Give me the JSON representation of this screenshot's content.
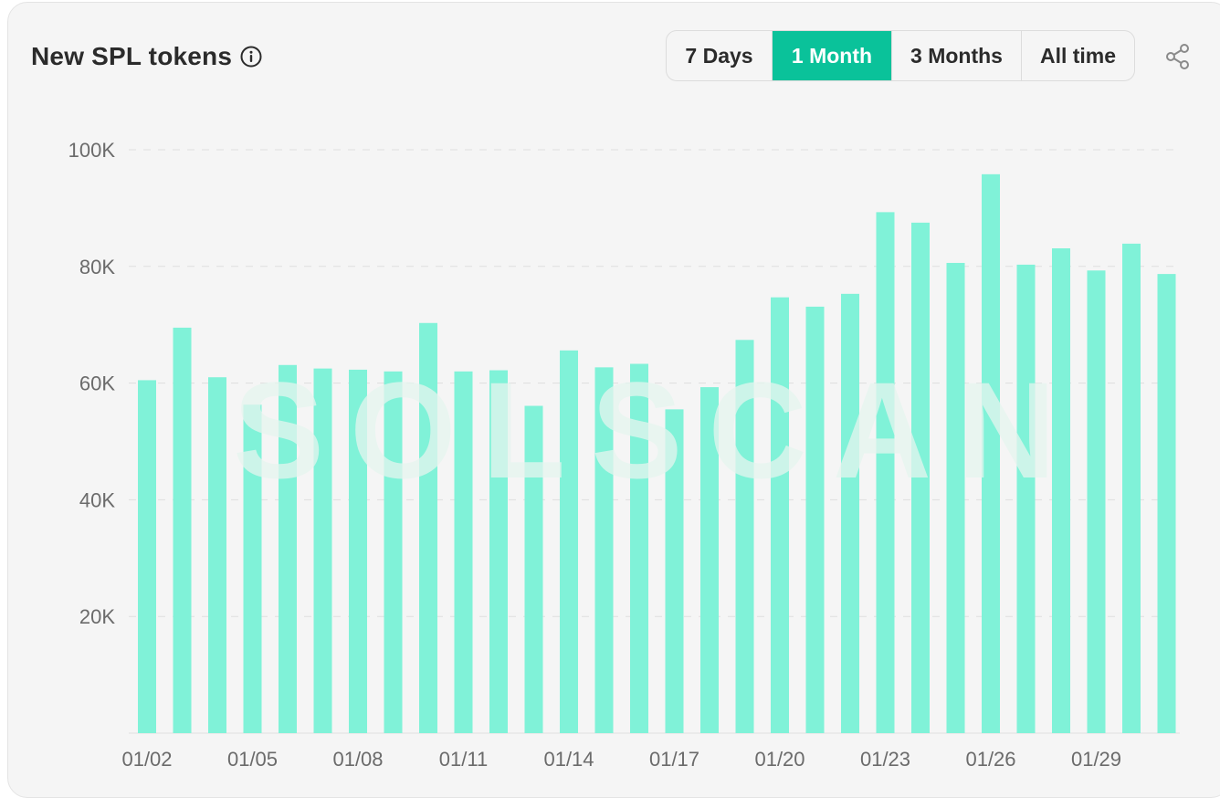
{
  "header": {
    "title": "New SPL tokens",
    "info_icon": "info-circle-icon",
    "share_icon": "share-icon"
  },
  "range_buttons": [
    {
      "label": "7 Days",
      "active": false
    },
    {
      "label": "1 Month",
      "active": true
    },
    {
      "label": "3 Months",
      "active": false
    },
    {
      "label": "All time",
      "active": false
    }
  ],
  "watermark": "SOLSCAN",
  "colors": {
    "bar": "#80f2d8",
    "accent": "#0ac29a",
    "grid": "#dedede",
    "axis_text": "#6b6b6b"
  },
  "chart_data": {
    "type": "bar",
    "title": "New SPL tokens",
    "xlabel": "",
    "ylabel": "",
    "ylim": [
      0,
      100000
    ],
    "y_ticks": [
      {
        "value": 20000,
        "label": "20K"
      },
      {
        "value": 40000,
        "label": "40K"
      },
      {
        "value": 60000,
        "label": "60K"
      },
      {
        "value": 80000,
        "label": "80K"
      },
      {
        "value": 100000,
        "label": "100K"
      }
    ],
    "categories": [
      "01/02",
      "01/03",
      "01/04",
      "01/05",
      "01/06",
      "01/07",
      "01/08",
      "01/09",
      "01/10",
      "01/11",
      "01/12",
      "01/13",
      "01/14",
      "01/15",
      "01/16",
      "01/17",
      "01/18",
      "01/19",
      "01/20",
      "01/21",
      "01/22",
      "01/23",
      "01/24",
      "01/25",
      "01/26",
      "01/27",
      "01/28",
      "01/29",
      "01/30",
      "01/31"
    ],
    "x_tick_labels": [
      "01/02",
      "01/05",
      "01/08",
      "01/11",
      "01/14",
      "01/17",
      "01/20",
      "01/23",
      "01/26",
      "01/29"
    ],
    "values": [
      60500,
      69500,
      61000,
      56300,
      63100,
      62500,
      62300,
      62000,
      70300,
      62000,
      62200,
      56100,
      65600,
      62700,
      63300,
      55500,
      59300,
      67400,
      74700,
      73100,
      75300,
      89300,
      87500,
      80600,
      95800,
      80300,
      83100,
      79300,
      83900,
      78700
    ],
    "grid": true,
    "legend": "none"
  }
}
